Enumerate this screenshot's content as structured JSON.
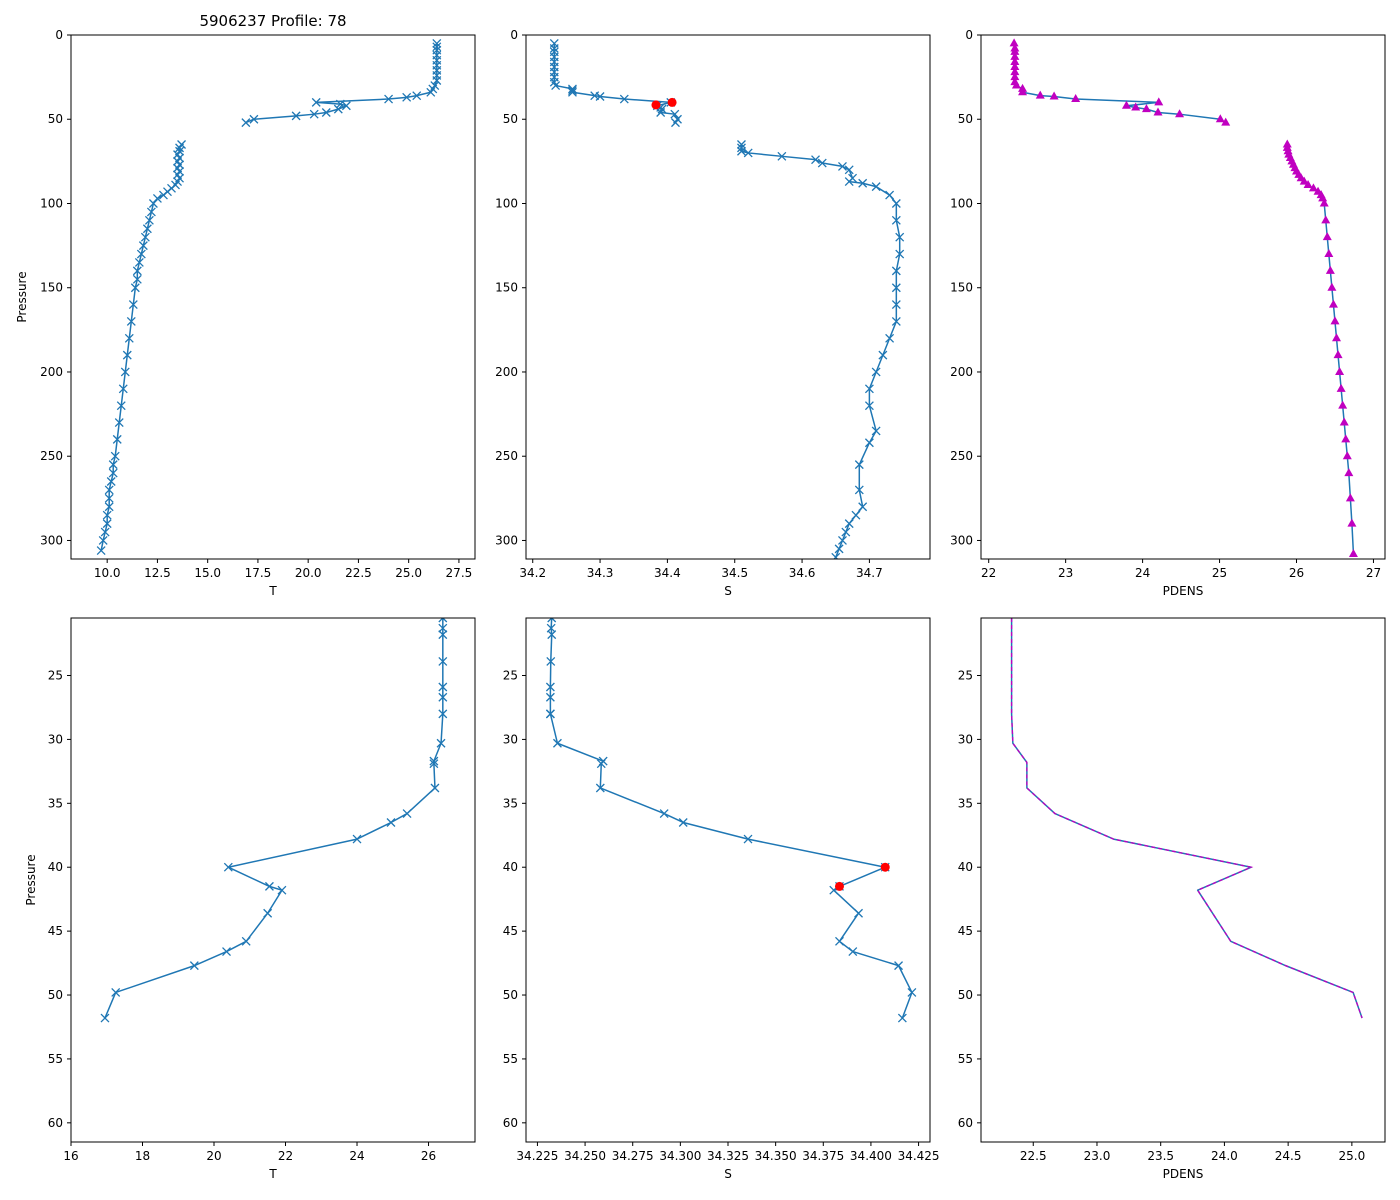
{
  "figure_title": "5906237 Profile: 78",
  "colors": {
    "line": "#1f77b4",
    "marker": "#1f77b4",
    "flag": "#ff0000",
    "pdens_marker": "#c000c0",
    "pdens_dash": "#c000c0",
    "axis": "#000000",
    "background": "#ffffff"
  },
  "chart_data": [
    {
      "id": "top-T",
      "type": "line",
      "marker": "x",
      "inverted_y": true,
      "xlabel": "T",
      "ylabel": "Pressure",
      "xlim": [
        8.2,
        28.3
      ],
      "ylim": [
        311,
        0
      ],
      "xticks": [
        10.0,
        12.5,
        15.0,
        17.5,
        20.0,
        22.5,
        25.0,
        27.5
      ],
      "xtick_labels": [
        "10.0",
        "12.5",
        "15.0",
        "17.5",
        "20.0",
        "22.5",
        "25.0",
        "27.5"
      ],
      "yticks": [
        0,
        50,
        100,
        150,
        200,
        250,
        300
      ],
      "ytick_labels": [
        "0",
        "50",
        "100",
        "150",
        "200",
        "250",
        "300"
      ],
      "segments": [
        {
          "x": [
            26.4,
            26.4,
            26.4,
            26.4,
            26.4,
            26.4,
            26.4,
            26.4,
            26.4,
            26.3,
            26.2,
            26.1,
            25.4,
            24.9,
            24.0,
            20.4,
            21.6,
            21.9,
            21.5,
            20.9,
            20.3,
            19.4,
            17.3,
            16.9
          ],
          "y": [
            5,
            7,
            9,
            12,
            15,
            18,
            21,
            24,
            27,
            30,
            32,
            34,
            36,
            37,
            38,
            40,
            41,
            42,
            44,
            46,
            47,
            48,
            50,
            52
          ]
        },
        {
          "x": [
            13.7,
            13.6,
            13.6,
            13.5,
            13.6,
            13.5,
            13.6,
            13.5,
            13.6,
            13.5,
            13.6,
            13.5,
            13.4,
            13.2,
            13.0,
            12.8,
            12.5,
            12.3,
            12.2,
            12.1,
            12.0,
            11.9,
            11.8,
            11.7,
            11.6,
            11.5,
            11.5,
            11.4,
            11.3,
            11.2,
            11.1,
            11.0,
            10.9,
            10.8,
            10.7,
            10.6,
            10.5,
            10.4,
            10.3,
            10.3,
            10.2,
            10.1,
            10.1,
            10.1,
            10.0,
            10.0,
            9.9,
            9.8,
            9.7
          ],
          "y": [
            65,
            67,
            69,
            71,
            73,
            75,
            77,
            79,
            81,
            83,
            85,
            87,
            89,
            91,
            93,
            95,
            97,
            100,
            105,
            110,
            115,
            120,
            125,
            130,
            135,
            140,
            145,
            150,
            160,
            170,
            180,
            190,
            200,
            210,
            220,
            230,
            240,
            250,
            255,
            260,
            265,
            270,
            275,
            280,
            285,
            290,
            295,
            300,
            306
          ]
        }
      ]
    },
    {
      "id": "top-S",
      "type": "line",
      "marker": "x",
      "inverted_y": true,
      "xlabel": "S",
      "ylabel": "",
      "xlim": [
        34.19,
        34.79
      ],
      "ylim": [
        311,
        0
      ],
      "xticks": [
        34.2,
        34.3,
        34.4,
        34.5,
        34.6,
        34.7
      ],
      "xtick_labels": [
        "34.2",
        "34.3",
        "34.4",
        "34.5",
        "34.6",
        "34.7"
      ],
      "yticks": [
        0,
        50,
        100,
        150,
        200,
        250,
        300
      ],
      "ytick_labels": [
        "0",
        "50",
        "100",
        "150",
        "200",
        "250",
        "300"
      ],
      "segments": [
        {
          "x": [
            34.232,
            34.232,
            34.232,
            34.232,
            34.232,
            34.232,
            34.232,
            34.232,
            34.232,
            34.234,
            34.259,
            34.259,
            34.259,
            34.292,
            34.3,
            34.336,
            34.405,
            34.385,
            34.39,
            34.392,
            34.39,
            34.411,
            34.415,
            34.412
          ],
          "y": [
            5,
            8,
            10,
            13,
            16,
            19,
            22,
            25,
            28,
            30,
            32,
            33,
            34,
            36,
            36.5,
            38,
            40,
            42,
            43,
            44,
            46,
            47,
            50,
            52
          ]
        },
        {
          "x": [
            34.51,
            34.51,
            34.51,
            34.52,
            34.57,
            34.62,
            34.63,
            34.66,
            34.67,
            34.675,
            34.67,
            34.69,
            34.71,
            34.73,
            34.74,
            34.74,
            34.745,
            34.745,
            34.74,
            34.74,
            34.74,
            34.74,
            34.73,
            34.72,
            34.71,
            34.7,
            34.7,
            34.71,
            34.7,
            34.685,
            34.685,
            34.69,
            34.68,
            34.67,
            34.665,
            34.66,
            34.655,
            34.65
          ],
          "y": [
            65,
            67,
            69,
            70,
            72,
            74,
            76,
            78,
            80,
            85,
            87,
            88,
            90,
            95,
            100,
            110,
            120,
            130,
            140,
            150,
            160,
            170,
            180,
            190,
            200,
            210,
            220,
            235,
            242,
            255,
            270,
            280,
            285,
            290,
            295,
            300,
            305,
            310
          ]
        }
      ],
      "flagged_points": {
        "x": [
          34.407,
          34.383
        ],
        "y": [
          40,
          41.5
        ]
      }
    },
    {
      "id": "top-PDENS",
      "type": "line",
      "marker": "triangle",
      "inverted_y": true,
      "xlabel": "PDENS",
      "ylabel": "",
      "xlim": [
        21.9,
        27.15
      ],
      "ylim": [
        311,
        0
      ],
      "xticks": [
        22,
        23,
        24,
        25,
        26,
        27
      ],
      "xtick_labels": [
        "22",
        "23",
        "24",
        "25",
        "26",
        "27"
      ],
      "yticks": [
        0,
        50,
        100,
        150,
        200,
        250,
        300
      ],
      "ytick_labels": [
        "0",
        "50",
        "100",
        "150",
        "200",
        "250",
        "300"
      ],
      "segments": [
        {
          "x": [
            22.33,
            22.34,
            22.34,
            22.34,
            22.34,
            22.34,
            22.34,
            22.34,
            22.34,
            22.36,
            22.44,
            22.44,
            22.67,
            22.85,
            23.13,
            24.21,
            23.79,
            23.91,
            24.05,
            24.2,
            24.48,
            25.01,
            25.08
          ],
          "y": [
            5,
            8,
            10,
            13,
            16,
            19,
            22,
            25,
            28,
            30,
            32,
            34,
            36,
            36.5,
            38,
            40,
            42,
            43,
            44,
            46,
            47,
            50,
            52
          ]
        },
        {
          "x": [
            25.88,
            25.88,
            25.89,
            25.9,
            25.92,
            25.94,
            25.96,
            25.98,
            26.0,
            26.03,
            26.06,
            26.1,
            26.15,
            26.22,
            26.28,
            26.32,
            26.34,
            26.36,
            26.38,
            26.4,
            26.42,
            26.44,
            26.46,
            26.48,
            26.5,
            26.52,
            26.54,
            26.56,
            26.58,
            26.6,
            26.62,
            26.64,
            26.66,
            26.68,
            26.7,
            26.72,
            26.74
          ],
          "y": [
            65,
            67,
            69,
            71,
            73,
            75,
            77,
            79,
            81,
            83,
            85,
            87,
            89,
            91,
            93,
            95,
            97,
            100,
            110,
            120,
            130,
            140,
            150,
            160,
            170,
            180,
            190,
            200,
            210,
            220,
            230,
            240,
            250,
            260,
            275,
            290,
            308
          ]
        }
      ]
    },
    {
      "id": "bottom-T",
      "type": "line",
      "marker": "x",
      "inverted_y": true,
      "xlabel": "T",
      "ylabel": "Pressure",
      "xlim": [
        16.0,
        27.3
      ],
      "ylim": [
        61.5,
        20.5
      ],
      "xticks": [
        16,
        18,
        20,
        22,
        24,
        26
      ],
      "xtick_labels": [
        "16",
        "18",
        "20",
        "22",
        "24",
        "26"
      ],
      "yticks": [
        25,
        30,
        35,
        40,
        45,
        50,
        55,
        60
      ],
      "ytick_labels": [
        "25",
        "30",
        "35",
        "40",
        "45",
        "50",
        "55",
        "60"
      ],
      "segments": [
        {
          "x": [
            26.4,
            26.4,
            26.4,
            26.4,
            26.4,
            26.4,
            26.4,
            26.35,
            26.15,
            26.15,
            26.18,
            25.4,
            24.95,
            24.0,
            20.4,
            21.55,
            21.9,
            21.5,
            20.9,
            20.35,
            19.45,
            17.25,
            16.95
          ],
          "y": [
            20.5,
            21.3,
            21.8,
            23.9,
            25.9,
            26.7,
            28.0,
            30.3,
            31.7,
            31.9,
            33.8,
            35.8,
            36.5,
            37.8,
            40.0,
            41.5,
            41.8,
            43.6,
            45.8,
            46.6,
            47.7,
            49.8,
            51.8
          ]
        }
      ]
    },
    {
      "id": "bottom-S",
      "type": "line",
      "marker": "x",
      "inverted_y": true,
      "xlabel": "S",
      "ylabel": "",
      "xlim": [
        34.219,
        34.431
      ],
      "ylim": [
        61.5,
        20.5
      ],
      "xticks": [
        34.225,
        34.25,
        34.275,
        34.3,
        34.325,
        34.35,
        34.375,
        34.4,
        34.425
      ],
      "xtick_labels": [
        "34.225",
        "34.250",
        "34.275",
        "34.300",
        "34.325",
        "34.350",
        "34.375",
        "34.400",
        "34.425"
      ],
      "yticks": [
        25,
        30,
        35,
        40,
        45,
        50,
        55,
        60
      ],
      "ytick_labels": [
        "25",
        "30",
        "35",
        "40",
        "45",
        "50",
        "55",
        "60"
      ],
      "segments": [
        {
          "x": [
            34.2325,
            34.2322,
            34.2325,
            34.232,
            34.2318,
            34.2318,
            34.2318,
            34.2318,
            34.2355,
            34.2595,
            34.2585,
            34.258,
            34.2915,
            34.3015,
            34.3355,
            34.4075,
            34.3835,
            34.3805,
            34.3935,
            34.3835,
            34.3905,
            34.4145,
            34.4215,
            34.4165
          ],
          "y": [
            20.5,
            21.3,
            21.8,
            23.9,
            25.9,
            26.7,
            28.0,
            28.0,
            30.3,
            31.7,
            31.9,
            33.8,
            35.8,
            36.5,
            37.8,
            40.0,
            41.5,
            41.8,
            43.6,
            45.8,
            46.6,
            47.7,
            49.8,
            51.8
          ]
        }
      ],
      "flagged_points": {
        "x": [
          34.4075,
          34.3835
        ],
        "y": [
          40.0,
          41.5
        ]
      }
    },
    {
      "id": "bottom-PDENS",
      "type": "line",
      "marker": "none",
      "inverted_y": true,
      "xlabel": "PDENS",
      "ylabel": "",
      "xlim": [
        22.09,
        25.26
      ],
      "ylim": [
        61.5,
        20.5
      ],
      "xticks": [
        22.5,
        23.0,
        23.5,
        24.0,
        24.5,
        25.0
      ],
      "xtick_labels": [
        "22.5",
        "23.0",
        "23.5",
        "24.0",
        "24.5",
        "25.0"
      ],
      "yticks": [
        25,
        30,
        35,
        40,
        45,
        50,
        55,
        60
      ],
      "ytick_labels": [
        "25",
        "30",
        "35",
        "40",
        "45",
        "50",
        "55",
        "60"
      ],
      "segments": [
        {
          "x": [
            22.33,
            22.33,
            22.33,
            22.34,
            22.45,
            22.45,
            22.67,
            23.13,
            24.21,
            23.79,
            24.05,
            24.48,
            25.01,
            25.08
          ],
          "y": [
            20.5,
            24.0,
            28.0,
            30.3,
            31.8,
            33.8,
            35.8,
            37.8,
            40.0,
            41.8,
            45.8,
            47.7,
            49.8,
            51.8
          ]
        }
      ],
      "dashed_overlay": true
    }
  ]
}
